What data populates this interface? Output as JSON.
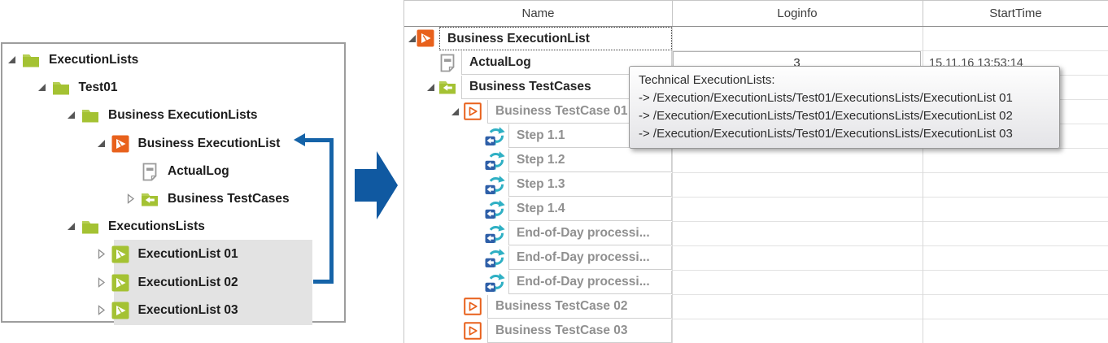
{
  "left_tree": {
    "rows": [
      {
        "label": "ExecutionLists",
        "level": 0,
        "expander": "expanded",
        "icon": "folder",
        "highlighted": false
      },
      {
        "label": "Test01",
        "level": 1,
        "expander": "expanded",
        "icon": "folder",
        "highlighted": false
      },
      {
        "label": "Business ExecutionLists",
        "level": 2,
        "expander": "expanded",
        "icon": "folder",
        "highlighted": false
      },
      {
        "label": "Business ExecutionList",
        "level": 3,
        "expander": "expanded",
        "icon": "execlist-orange",
        "highlighted": false
      },
      {
        "label": "ActualLog",
        "level": 4,
        "expander": null,
        "icon": "log",
        "highlighted": false
      },
      {
        "label": "Business TestCases",
        "level": 4,
        "expander": "collapsed",
        "icon": "folder-arrow",
        "highlighted": false
      },
      {
        "label": "ExecutionsLists",
        "level": 2,
        "expander": "expanded",
        "icon": "folder",
        "highlighted": false
      },
      {
        "label": "ExecutionList 01",
        "level": 3,
        "expander": "collapsed",
        "icon": "execlist-green",
        "highlighted": true
      },
      {
        "label": "ExecutionList 02",
        "level": 3,
        "expander": "collapsed",
        "icon": "execlist-green",
        "highlighted": true
      },
      {
        "label": "ExecutionList 03",
        "level": 3,
        "expander": "collapsed",
        "icon": "execlist-green",
        "highlighted": true
      }
    ]
  },
  "grid": {
    "columns": [
      {
        "label": "Name"
      },
      {
        "label": "Loginfo"
      },
      {
        "label": "StartTime"
      }
    ],
    "rows": [
      {
        "name": "Business ExecutionList",
        "level": 0,
        "expander": "expanded",
        "icon": "execlist-orange",
        "text_style": "dark",
        "selected": true,
        "loginfo": "",
        "starttime": ""
      },
      {
        "name": "ActualLog",
        "level": 1,
        "expander": null,
        "icon": "log",
        "text_style": "dark",
        "selected": false,
        "loginfo": "3",
        "starttime": "15.11.16 13:53:14"
      },
      {
        "name": "Business TestCases",
        "level": 1,
        "expander": "expanded",
        "icon": "folder-arrow",
        "text_style": "dark",
        "selected": false,
        "loginfo": "",
        "starttime": ""
      },
      {
        "name": "Business TestCase 01",
        "level": 2,
        "expander": "expanded",
        "icon": "testcase-orange",
        "text_style": "gray",
        "selected": false,
        "loginfo": "",
        "starttime": ""
      },
      {
        "name": "Step 1.1",
        "level": 3,
        "expander": null,
        "icon": "step",
        "text_style": "gray",
        "selected": false,
        "loginfo": "",
        "starttime": ""
      },
      {
        "name": "Step 1.2",
        "level": 3,
        "expander": null,
        "icon": "step",
        "text_style": "gray",
        "selected": false,
        "loginfo": "",
        "starttime": ""
      },
      {
        "name": "Step 1.3",
        "level": 3,
        "expander": null,
        "icon": "step",
        "text_style": "gray",
        "selected": false,
        "loginfo": "",
        "starttime": ""
      },
      {
        "name": "Step 1.4",
        "level": 3,
        "expander": null,
        "icon": "step",
        "text_style": "gray",
        "selected": false,
        "loginfo": "",
        "starttime": ""
      },
      {
        "name": "End-of-Day processi...",
        "level": 3,
        "expander": null,
        "icon": "step",
        "text_style": "gray",
        "selected": false,
        "loginfo": "",
        "starttime": ""
      },
      {
        "name": "End-of-Day processi...",
        "level": 3,
        "expander": null,
        "icon": "step",
        "text_style": "gray",
        "selected": false,
        "loginfo": "",
        "starttime": ""
      },
      {
        "name": "End-of-Day processi...",
        "level": 3,
        "expander": null,
        "icon": "step",
        "text_style": "gray",
        "selected": false,
        "loginfo": "",
        "starttime": ""
      },
      {
        "name": "Business TestCase 02",
        "level": 2,
        "expander": null,
        "icon": "testcase-orange",
        "text_style": "gray",
        "selected": false,
        "loginfo": "",
        "starttime": ""
      },
      {
        "name": "Business TestCase 03",
        "level": 2,
        "expander": null,
        "icon": "testcase-orange",
        "text_style": "gray",
        "selected": false,
        "loginfo": "",
        "starttime": ""
      }
    ]
  },
  "tooltip": {
    "title": "Technical ExecutionLists:",
    "lines": [
      "-> /Execution/ExecutionLists/Test01/ExecutionsLists/ExecutionList 01",
      "-> /Execution/ExecutionLists/Test01/ExecutionsLists/ExecutionList 02",
      "-> /Execution/ExecutionLists/Test01/ExecutionsLists/ExecutionList 03"
    ]
  },
  "colors": {
    "accent_orange": "#e8611c",
    "accent_green": "#a4c233",
    "flow_arrow_blue": "#1059a1",
    "connector_blue": "#1563a8",
    "step_cyan": "#2fb0c4",
    "step_blue": "#2e5fa8",
    "highlight_gray": "#e3e3e3",
    "icon_gray": "#9a9a9a"
  }
}
